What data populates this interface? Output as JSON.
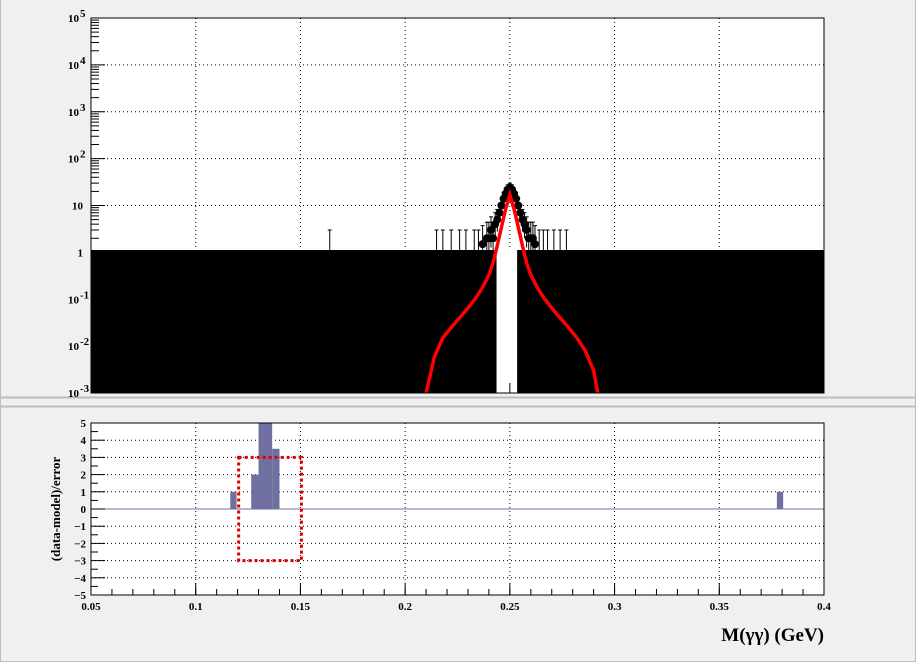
{
  "chart_data": [
    {
      "type": "line",
      "panel": "fit",
      "ylog": true,
      "xlim": [
        0.05,
        0.4
      ],
      "ylim": [
        0.001,
        100000
      ],
      "grid": true,
      "y_tick_labels": [
        {
          "value": 0.001,
          "base": "10",
          "exp": "-3"
        },
        {
          "value": 0.01,
          "base": "10",
          "exp": "-2"
        },
        {
          "value": 0.1,
          "base": "10",
          "exp": "-1"
        },
        {
          "value": 1,
          "base": "1",
          "exp": ""
        },
        {
          "value": 10,
          "base": "10",
          "exp": ""
        },
        {
          "value": 100,
          "base": "10",
          "exp": "2"
        },
        {
          "value": 1000,
          "base": "10",
          "exp": "3"
        },
        {
          "value": 10000,
          "base": "10",
          "exp": "4"
        },
        {
          "value": 100000,
          "base": "10",
          "exp": "5"
        }
      ],
      "series": [
        {
          "kind": "data_points",
          "color": "#000000",
          "x": [
            0.164,
            0.215,
            0.218,
            0.222,
            0.226,
            0.229,
            0.233,
            0.235,
            0.237,
            0.239,
            0.24,
            0.241,
            0.242,
            0.243,
            0.244,
            0.245,
            0.246,
            0.247,
            0.248,
            0.249,
            0.25,
            0.251,
            0.252,
            0.253,
            0.254,
            0.255,
            0.256,
            0.257,
            0.258,
            0.259,
            0.26,
            0.261,
            0.262,
            0.264,
            0.266,
            0.268,
            0.271,
            0.274,
            0.277
          ],
          "y": [
            1,
            1,
            1,
            1,
            1,
            1,
            1,
            1,
            1.5,
            2,
            2,
            3,
            2,
            4,
            5,
            7,
            10,
            14,
            18,
            22,
            24,
            22,
            18,
            14,
            10,
            7,
            5,
            4,
            3,
            2,
            2,
            2,
            1.5,
            1,
            1,
            1,
            1,
            1,
            1
          ]
        },
        {
          "kind": "fit_curve",
          "color": "#ff0000",
          "x": [
            0.21,
            0.214,
            0.218,
            0.222,
            0.226,
            0.23,
            0.234,
            0.237,
            0.24,
            0.242,
            0.244,
            0.246,
            0.248,
            0.25,
            0.252,
            0.254,
            0.256,
            0.258,
            0.26,
            0.263,
            0.266,
            0.27,
            0.274,
            0.278,
            0.282,
            0.286,
            0.29,
            0.292
          ],
          "y": [
            0.001,
            0.006,
            0.015,
            0.025,
            0.04,
            0.065,
            0.11,
            0.18,
            0.33,
            0.6,
            1.4,
            3.5,
            8.5,
            17,
            8.5,
            3.5,
            1.4,
            0.6,
            0.33,
            0.18,
            0.11,
            0.065,
            0.04,
            0.025,
            0.015,
            0.008,
            0.003,
            0.001
          ]
        }
      ]
    },
    {
      "type": "bar",
      "panel": "residual",
      "ylabel": "(data-model)/error",
      "xlabel": "M(γγ) (GeV)",
      "xlim": [
        0.05,
        0.4
      ],
      "ylim": [
        -5,
        5
      ],
      "grid": true,
      "color": "#6f6fa0",
      "x_tick_labels": [
        "0.05",
        "0.1",
        "0.15",
        "0.2",
        "0.25",
        "0.3",
        "0.35",
        "0.4"
      ],
      "x_tick_values": [
        0.05,
        0.1,
        0.15,
        0.2,
        0.25,
        0.3,
        0.35,
        0.4
      ],
      "y_tick_labels": [
        "−5",
        "−4",
        "−3",
        "−2",
        "−1",
        "0",
        "1",
        "2",
        "3",
        "4",
        "5"
      ],
      "y_tick_values": [
        -5,
        -4,
        -3,
        -2,
        -1,
        0,
        1,
        2,
        3,
        4,
        5
      ],
      "bars": [
        {
          "x0": 0.1165,
          "x1": 0.1195,
          "value": 1
        },
        {
          "x0": 0.1265,
          "x1": 0.13,
          "value": 2
        },
        {
          "x0": 0.13,
          "x1": 0.1365,
          "value": 5
        },
        {
          "x0": 0.1365,
          "x1": 0.14,
          "value": 3.5
        },
        {
          "x0": 0.3775,
          "x1": 0.3805,
          "value": 1
        }
      ],
      "highlight_box": {
        "x0": 0.1205,
        "x1": 0.1505,
        "y0": -3,
        "y1": 3,
        "color": "#dd0000"
      }
    }
  ]
}
